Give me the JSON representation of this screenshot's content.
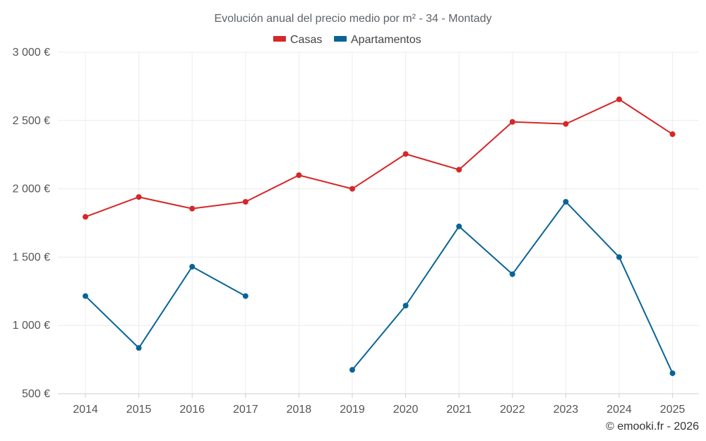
{
  "chart_data": {
    "type": "line",
    "title": "Evolución anual del precio medio por m² - 34 - Montady",
    "categories": [
      "2014",
      "2015",
      "2016",
      "2017",
      "2018",
      "2019",
      "2020",
      "2021",
      "2022",
      "2023",
      "2024",
      "2025"
    ],
    "ylim": [
      500,
      3000
    ],
    "yticks": [
      500,
      1000,
      1500,
      2000,
      2500,
      3000
    ],
    "ytick_labels": [
      "500 €",
      "1 000 €",
      "1 500 €",
      "2 000 €",
      "2 500 €",
      "3 000 €"
    ],
    "grid": true,
    "legend_position": "top-center",
    "series": [
      {
        "name": "Casas",
        "color": "#d62728",
        "values": [
          1795,
          1940,
          1855,
          1905,
          2100,
          2000,
          2255,
          2140,
          2490,
          2475,
          2655,
          2400
        ]
      },
      {
        "name": "Apartamentos",
        "color": "#0a6496",
        "values": [
          1215,
          835,
          1430,
          1215,
          null,
          675,
          1145,
          1725,
          1375,
          1905,
          1500,
          650
        ]
      }
    ]
  },
  "credit": "© emooki.fr - 2026"
}
